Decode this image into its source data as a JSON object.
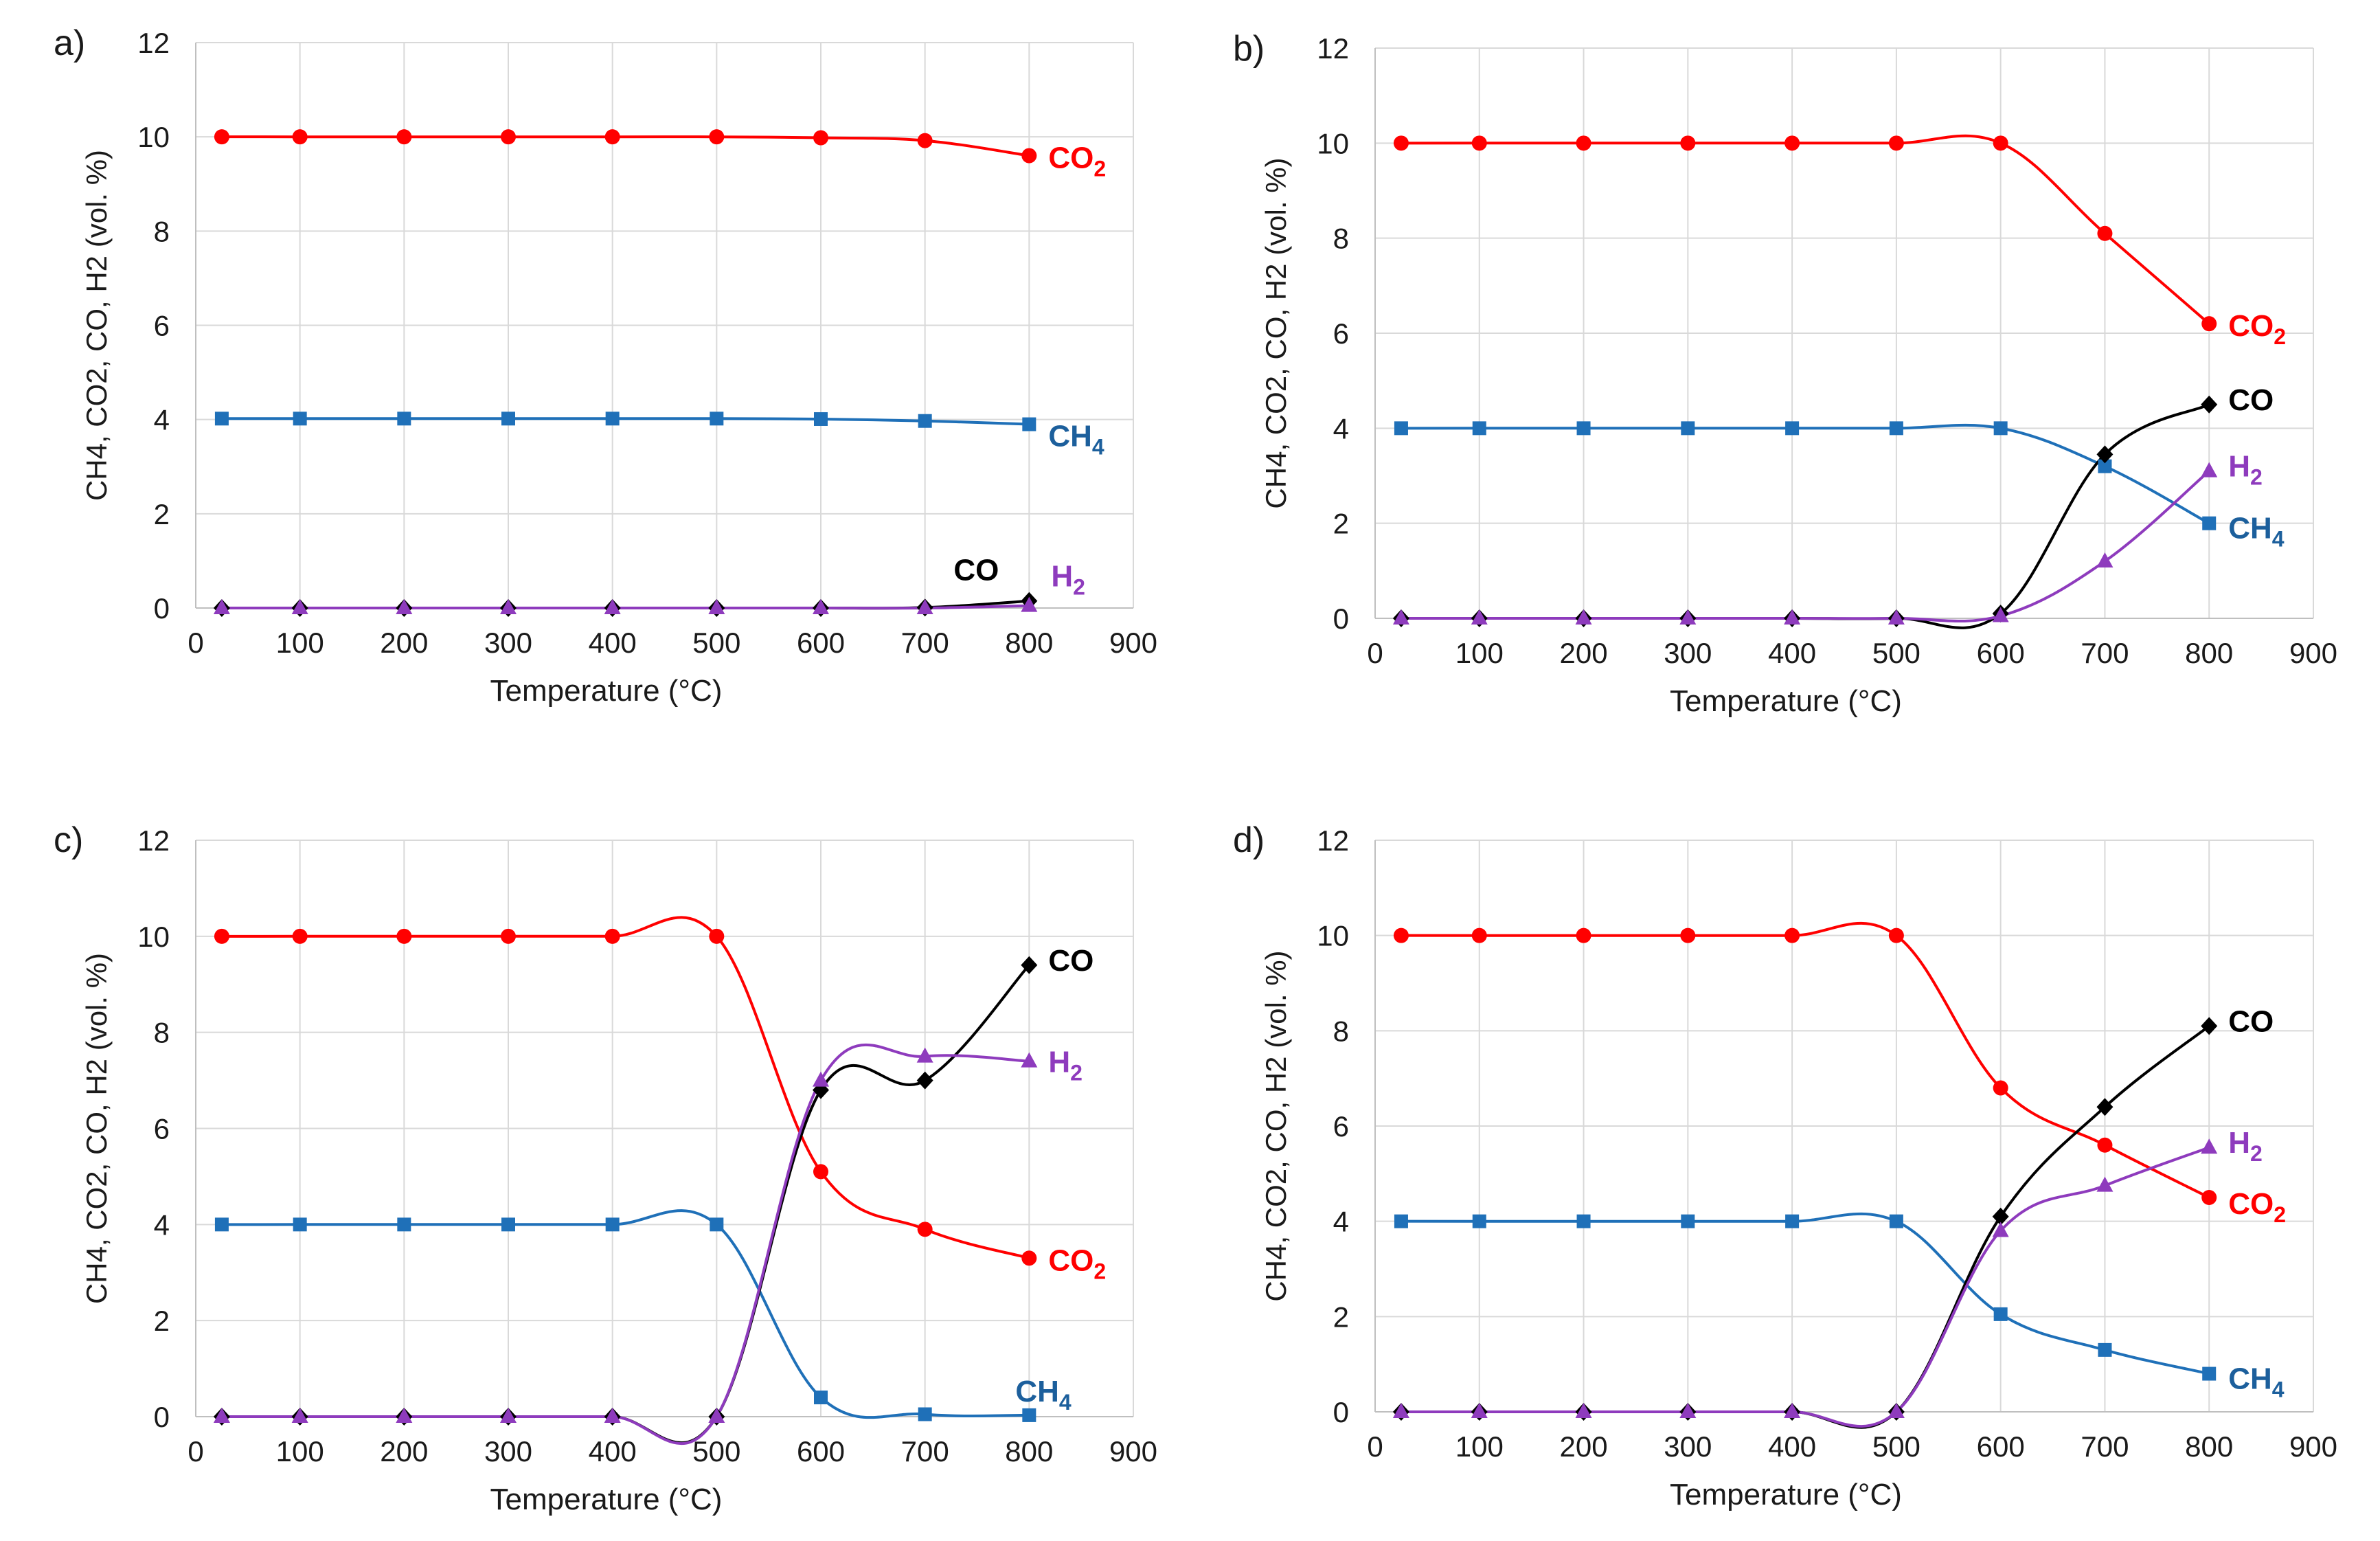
{
  "colors": {
    "CO2": "#ff0000",
    "CH4": "#1f70b8",
    "CO": "#000000",
    "H2": "#8e3bbd",
    "CH4_label": "#1c5f9c"
  },
  "chart_data": [
    {
      "type": "line",
      "panel_label": "a)",
      "xlabel": "Temperature (°C)",
      "ylabel": "CH4, CO2, CO, H2 (vol. %)",
      "xlim": [
        0,
        900
      ],
      "ylim": [
        0,
        12
      ],
      "xticks": [
        "0",
        "100",
        "200",
        "300",
        "400",
        "500",
        "600",
        "700",
        "800",
        "900"
      ],
      "yticks": [
        "0",
        "2",
        "4",
        "6",
        "8",
        "10",
        "12"
      ],
      "grid": true,
      "x": [
        25,
        100,
        200,
        300,
        400,
        500,
        600,
        700,
        800
      ],
      "series": [
        {
          "name": "CO2",
          "label_main": "CO",
          "label_sub": "2",
          "marker": "circle",
          "values": [
            10,
            10,
            10,
            10,
            10,
            10,
            9.98,
            9.92,
            9.6
          ]
        },
        {
          "name": "CH4",
          "label_main": "CH",
          "label_sub": "4",
          "marker": "square",
          "values": [
            4.02,
            4.02,
            4.02,
            4.02,
            4.02,
            4.02,
            4.01,
            3.97,
            3.9
          ]
        },
        {
          "name": "CO",
          "label_main": "CO",
          "label_sub": "",
          "marker": "diamond",
          "values": [
            0,
            0,
            0,
            0,
            0,
            0,
            0,
            0.01,
            0.15
          ]
        },
        {
          "name": "H2",
          "label_main": "H",
          "label_sub": "2",
          "marker": "triangle",
          "values": [
            0,
            0,
            0,
            0,
            0,
            0,
            0,
            0,
            0.05
          ]
        }
      ]
    },
    {
      "type": "line",
      "panel_label": "b)",
      "xlabel": "Temperature (°C)",
      "ylabel": "CH4, CO2, CO, H2 (vol. %)",
      "xlim": [
        0,
        900
      ],
      "ylim": [
        0,
        12
      ],
      "xticks": [
        "0",
        "100",
        "200",
        "300",
        "400",
        "500",
        "600",
        "700",
        "800",
        "900"
      ],
      "yticks": [
        "0",
        "2",
        "4",
        "6",
        "8",
        "10",
        "12"
      ],
      "grid": true,
      "x": [
        25,
        100,
        200,
        300,
        400,
        500,
        600,
        700,
        800
      ],
      "series": [
        {
          "name": "CO2",
          "label_main": "CO",
          "label_sub": "2",
          "marker": "circle",
          "values": [
            10,
            10,
            10,
            10,
            10,
            10,
            10,
            8.1,
            6.2
          ]
        },
        {
          "name": "CH4",
          "label_main": "CH",
          "label_sub": "4",
          "marker": "square",
          "values": [
            4,
            4,
            4,
            4,
            4,
            4,
            4,
            3.2,
            2.0
          ]
        },
        {
          "name": "CO",
          "label_main": "CO",
          "label_sub": "",
          "marker": "diamond",
          "values": [
            0,
            0,
            0,
            0,
            0,
            0,
            0.1,
            3.45,
            4.5
          ]
        },
        {
          "name": "H2",
          "label_main": "H",
          "label_sub": "2",
          "marker": "triangle",
          "values": [
            0,
            0,
            0,
            0,
            0,
            0,
            0.05,
            1.2,
            3.1
          ]
        }
      ]
    },
    {
      "type": "line",
      "panel_label": "c)",
      "xlabel": "Temperature (°C)",
      "ylabel": "CH4, CO2, CO, H2 (vol. %)",
      "xlim": [
        0,
        900
      ],
      "ylim": [
        0,
        12
      ],
      "xticks": [
        "0",
        "100",
        "200",
        "300",
        "400",
        "500",
        "600",
        "700",
        "800",
        "900"
      ],
      "yticks": [
        "0",
        "2",
        "4",
        "6",
        "8",
        "10",
        "12"
      ],
      "grid": true,
      "x": [
        25,
        100,
        200,
        300,
        400,
        500,
        600,
        700,
        800
      ],
      "series": [
        {
          "name": "CO2",
          "label_main": "CO",
          "label_sub": "2",
          "marker": "circle",
          "values": [
            10,
            10,
            10,
            10,
            10,
            10,
            5.1,
            3.9,
            3.3
          ]
        },
        {
          "name": "CH4",
          "label_main": "CH",
          "label_sub": "4",
          "marker": "square",
          "values": [
            4,
            4,
            4,
            4,
            4,
            4,
            0.4,
            0.05,
            0.03
          ]
        },
        {
          "name": "CO",
          "label_main": "CO",
          "label_sub": "",
          "marker": "diamond",
          "values": [
            0,
            0,
            0,
            0,
            0,
            0,
            6.8,
            7.0,
            9.4
          ]
        },
        {
          "name": "H2",
          "label_main": "H",
          "label_sub": "2",
          "marker": "triangle",
          "values": [
            0,
            0,
            0,
            0,
            0,
            0,
            7.0,
            7.5,
            7.4
          ]
        }
      ]
    },
    {
      "type": "line",
      "panel_label": "d)",
      "xlabel": "Temperature (°C)",
      "ylabel": "CH4, CO2, CO, H2 (vol. %)",
      "xlim": [
        0,
        900
      ],
      "ylim": [
        0,
        12
      ],
      "xticks": [
        "0",
        "100",
        "200",
        "300",
        "400",
        "500",
        "600",
        "700",
        "800",
        "900"
      ],
      "yticks": [
        "0",
        "2",
        "4",
        "6",
        "8",
        "10",
        "12"
      ],
      "grid": true,
      "x": [
        25,
        100,
        200,
        300,
        400,
        500,
        600,
        700,
        800
      ],
      "series": [
        {
          "name": "CO2",
          "label_main": "CO",
          "label_sub": "2",
          "marker": "circle",
          "values": [
            10,
            10,
            10,
            10,
            10,
            10,
            6.8,
            5.6,
            4.5
          ]
        },
        {
          "name": "CH4",
          "label_main": "CH",
          "label_sub": "4",
          "marker": "square",
          "values": [
            4,
            4,
            4,
            4,
            4,
            4,
            2.05,
            1.3,
            0.8
          ]
        },
        {
          "name": "CO",
          "label_main": "CO",
          "label_sub": "",
          "marker": "diamond",
          "values": [
            0,
            0,
            0,
            0,
            0,
            0,
            4.1,
            6.4,
            8.1
          ]
        },
        {
          "name": "H2",
          "label_main": "H",
          "label_sub": "2",
          "marker": "triangle",
          "values": [
            0,
            0,
            0,
            0,
            0,
            0,
            3.8,
            4.75,
            5.55
          ]
        }
      ]
    }
  ]
}
